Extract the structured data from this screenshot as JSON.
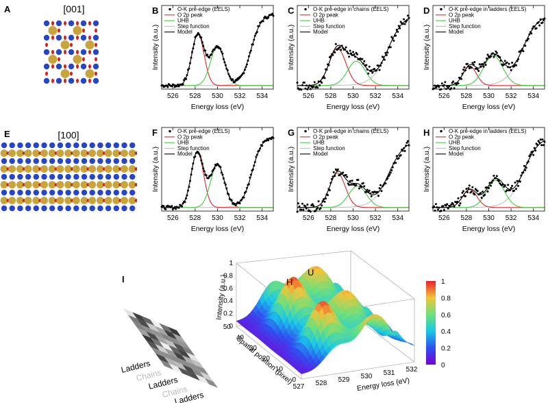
{
  "panels": [
    {
      "id": "B",
      "legend": [
        "O-K pre-edge (EELS)",
        "O 2p peak",
        "UHB",
        "Step function",
        "Model"
      ]
    },
    {
      "id": "C",
      "legend": [
        "O-K pre-edge in chains (EELS)",
        "O 2p peak",
        "UHB",
        "Step function",
        "Model"
      ]
    },
    {
      "id": "D",
      "legend": [
        "O-K pre-edge in ladders (EELS)",
        "O 2p peak",
        "UHB",
        "Step function",
        "Model"
      ]
    },
    {
      "id": "F",
      "legend": [
        "O-K pre-edge (EELS)",
        "O 2p peak",
        "UHB",
        "Step function",
        "Model"
      ]
    },
    {
      "id": "G",
      "legend": [
        "O-K pre-edge in chains (EELS)",
        "O 2p peak",
        "UHB",
        "Step function",
        "Model"
      ]
    },
    {
      "id": "H",
      "legend": [
        "O-K pre-edge in ladders (EELS)",
        "O 2p peak",
        "UHB",
        "Step function",
        "Model"
      ]
    }
  ],
  "crystal": {
    "A": {
      "label": "A",
      "title": "[001]"
    },
    "E": {
      "label": "E",
      "title": "[100]"
    }
  },
  "colors": {
    "data": "#000000",
    "o2p": "#e0242b",
    "uhb": "#3fcc3f",
    "step": "#bbbbbb",
    "model": "#000000",
    "atom_gold": "#c8a43a",
    "atom_blue": "#2546c8",
    "atom_red": "#d92020"
  },
  "chart_data": [
    {
      "panel": "B",
      "type": "line",
      "xlabel": "Energy loss (eV)",
      "ylabel": "Intensity (a.u.)",
      "xlim": [
        525,
        535
      ],
      "xticks": [
        526,
        528,
        530,
        532,
        534
      ],
      "o2p": {
        "center": 528.25,
        "amp": 0.72,
        "sigma": 0.55
      },
      "uhb": {
        "center": 530.0,
        "amp": 0.55,
        "sigma": 0.62
      },
      "step": {
        "center": 533.0,
        "height": 1.0,
        "width": 0.45
      }
    },
    {
      "panel": "C",
      "type": "line",
      "xlabel": "Energy loss (eV)",
      "ylabel": "Intensity (a.u.)",
      "xlim": [
        525,
        535
      ],
      "xticks": [
        526,
        528,
        530,
        532,
        534
      ],
      "o2p": {
        "center": 528.6,
        "amp": 0.52,
        "sigma": 0.75
      },
      "uhb": {
        "center": 530.3,
        "amp": 0.34,
        "sigma": 0.8
      },
      "step": {
        "center": 533.1,
        "height": 1.0,
        "width": 0.7
      }
    },
    {
      "panel": "D",
      "type": "line",
      "xlabel": "Energy loss (eV)",
      "ylabel": "Intensity (a.u.)",
      "xlim": [
        525,
        535
      ],
      "xticks": [
        526,
        528,
        530,
        532,
        534
      ],
      "o2p": {
        "center": 528.3,
        "amp": 0.27,
        "sigma": 0.6
      },
      "uhb": {
        "center": 530.4,
        "amp": 0.42,
        "sigma": 0.85
      },
      "step": {
        "center": 533.0,
        "height": 1.0,
        "width": 0.7
      }
    },
    {
      "panel": "F",
      "type": "line",
      "xlabel": "Energy loss (eV)",
      "ylabel": "Intensity (a.u.)",
      "xlim": [
        525,
        535
      ],
      "xticks": [
        526,
        528,
        530,
        532,
        534
      ],
      "o2p": {
        "center": 528.2,
        "amp": 0.78,
        "sigma": 0.55
      },
      "uhb": {
        "center": 530.0,
        "amp": 0.6,
        "sigma": 0.62
      },
      "step": {
        "center": 533.1,
        "height": 1.0,
        "width": 0.45
      }
    },
    {
      "panel": "G",
      "type": "line",
      "xlabel": "Energy loss (eV)",
      "ylabel": "Intensity (a.u.)",
      "xlim": [
        525,
        535
      ],
      "xticks": [
        526,
        528,
        530,
        532,
        534
      ],
      "o2p": {
        "center": 528.6,
        "amp": 0.48,
        "sigma": 0.7
      },
      "uhb": {
        "center": 530.4,
        "amp": 0.3,
        "sigma": 0.8
      },
      "step": {
        "center": 533.2,
        "height": 0.95,
        "width": 0.7
      }
    },
    {
      "panel": "H",
      "type": "line",
      "xlabel": "Energy loss (eV)",
      "ylabel": "Intensity (a.u.)",
      "xlim": [
        525,
        535
      ],
      "xticks": [
        526,
        528,
        530,
        532,
        534
      ],
      "o2p": {
        "center": 528.3,
        "amp": 0.25,
        "sigma": 0.65
      },
      "uhb": {
        "center": 530.6,
        "amp": 0.38,
        "sigma": 0.8
      },
      "step": {
        "center": 533.1,
        "height": 1.0,
        "width": 0.7
      }
    },
    {
      "panel": "I",
      "type": "surface",
      "label": "I",
      "peak_labels": [
        "H",
        "U"
      ],
      "zlabel": "Intensity (a.u.)",
      "ylabel": "Spatial position (pixel)",
      "xlabel": "Energy loss (eV)",
      "zticks": [
        0,
        0.2,
        0.4,
        0.6,
        0.8,
        1
      ],
      "yticks": [
        0,
        10,
        20,
        30,
        40,
        50
      ],
      "xticks": [
        527,
        528,
        529,
        530,
        531,
        532
      ],
      "colorbar_ticks": [
        0,
        0.2,
        0.4,
        0.6,
        0.8,
        1
      ],
      "row_labels": [
        "Ladders",
        "Chains",
        "Ladders",
        "Chains",
        "Ladders"
      ]
    }
  ]
}
